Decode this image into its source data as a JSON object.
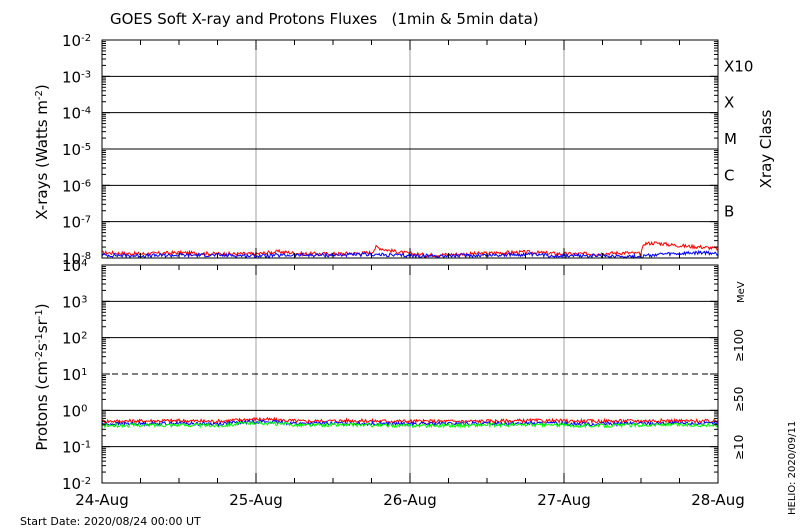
{
  "title": "GOES Soft X-ray and Protons Fluxes   (1min & 5min data)",
  "start_date": "Start Date: 2020/08/24 00:00 UT",
  "credit": "HELIO: 2020/09/11",
  "colors": {
    "red": "#ff0000",
    "blue": "#0000ff",
    "green": "#00ff00",
    "grid": "#a0a0a0",
    "axis": "#000000"
  },
  "chart_data": [
    {
      "type": "line",
      "panel": "x-rays",
      "ylabel": "X-rays (Watts m",
      "ylabel_exp": "-2",
      "ylabel_close": ")",
      "yscale": "log",
      "ylim": [
        1e-08,
        0.01
      ],
      "y_ticks": [
        {
          "base": "10",
          "exp": "-8",
          "value": 1e-08
        },
        {
          "base": "10",
          "exp": "-7",
          "value": 1e-07
        },
        {
          "base": "10",
          "exp": "-6",
          "value": 1e-06
        },
        {
          "base": "10",
          "exp": "-5",
          "value": 1e-05
        },
        {
          "base": "10",
          "exp": "-4",
          "value": 0.0001
        },
        {
          "base": "10",
          "exp": "-3",
          "value": 0.001
        },
        {
          "base": "10",
          "exp": "-2",
          "value": 0.01
        }
      ],
      "right_title": "Xray Class",
      "classes": [
        {
          "label": "B",
          "value": 1e-07
        },
        {
          "label": "C",
          "value": 1e-06
        },
        {
          "label": "M",
          "value": 1e-05
        },
        {
          "label": "X",
          "value": 0.0001
        },
        {
          "label": "X10",
          "value": 0.001
        }
      ],
      "grid_lines": [
        1e-07,
        1e-06,
        1e-05,
        0.0001,
        0.001
      ],
      "x_days": [
        0,
        4
      ],
      "series": [
        {
          "color": "red",
          "points": [
            [
              0,
              1.4e-08
            ],
            [
              0.25,
              1.3e-08
            ],
            [
              0.5,
              1.4e-08
            ],
            [
              0.75,
              1.3e-08
            ],
            [
              1.0,
              1.3e-08
            ],
            [
              1.15,
              1.5e-08
            ],
            [
              1.3,
              1.3e-08
            ],
            [
              1.5,
              1.3e-08
            ],
            [
              1.65,
              1.35e-08
            ],
            [
              1.75,
              1.4e-08
            ],
            [
              1.78,
              2e-08
            ],
            [
              1.84,
              1.7e-08
            ],
            [
              1.95,
              1.4e-08
            ],
            [
              2.1,
              1.2e-08
            ],
            [
              2.4,
              1.3e-08
            ],
            [
              2.6,
              1.4e-08
            ],
            [
              2.75,
              1.45e-08
            ],
            [
              3.0,
              1.3e-08
            ],
            [
              3.2,
              1.3e-08
            ],
            [
              3.4,
              1.4e-08
            ],
            [
              3.5,
              1.3e-08
            ],
            [
              3.52,
              2.5e-08
            ],
            [
              3.6,
              2.6e-08
            ],
            [
              3.7,
              2.3e-08
            ],
            [
              3.8,
              2.1e-08
            ],
            [
              3.9,
              2e-08
            ],
            [
              4.0,
              1.8e-08
            ]
          ]
        },
        {
          "color": "blue",
          "points": [
            [
              0,
              1.2e-08
            ],
            [
              0.25,
              1.15e-08
            ],
            [
              0.5,
              1.2e-08
            ],
            [
              0.75,
              1.2e-08
            ],
            [
              1.0,
              1.15e-08
            ],
            [
              1.25,
              1.2e-08
            ],
            [
              1.5,
              1.2e-08
            ],
            [
              1.75,
              1.25e-08
            ],
            [
              2.0,
              1.15e-08
            ],
            [
              2.25,
              1.15e-08
            ],
            [
              2.5,
              1.2e-08
            ],
            [
              2.75,
              1.25e-08
            ],
            [
              3.0,
              1.15e-08
            ],
            [
              3.25,
              1.15e-08
            ],
            [
              3.5,
              1.1e-08
            ],
            [
              3.6,
              1.25e-08
            ],
            [
              3.75,
              1.3e-08
            ],
            [
              3.9,
              1.4e-08
            ],
            [
              4.0,
              1.3e-08
            ]
          ]
        }
      ]
    },
    {
      "type": "line",
      "panel": "protons",
      "ylabel": "Protons (cm",
      "ylabel_exp": "-2",
      "ylabel_mid": "s",
      "ylabel_exp2": "-1",
      "ylabel_mid2": "sr",
      "ylabel_exp3": "-1",
      "ylabel_close": ")",
      "yscale": "log",
      "ylim": [
        0.01,
        10000
      ],
      "y_ticks": [
        {
          "base": "10",
          "exp": "-2",
          "value": 0.01
        },
        {
          "base": "10",
          "exp": "-1",
          "value": 0.1
        },
        {
          "base": "10",
          "exp": "0",
          "value": 1
        },
        {
          "base": "10",
          "exp": "1",
          "value": 10
        },
        {
          "base": "10",
          "exp": "2",
          "value": 100
        },
        {
          "base": "10",
          "exp": "3",
          "value": 1000
        },
        {
          "base": "10",
          "exp": "4",
          "value": 10000
        }
      ],
      "grid_lines": [
        0.1,
        1,
        100,
        1000
      ],
      "threshold": 10,
      "unit": "MeV",
      "energy_labels": [
        {
          "label": "≥100",
          "color": "green"
        },
        {
          "label": "≥50",
          "color": "blue"
        },
        {
          "label": "≥10",
          "color": "red"
        }
      ],
      "x_days": [
        0,
        4
      ],
      "series": [
        {
          "color": "red",
          "points": [
            [
              0,
              0.5
            ],
            [
              0.5,
              0.52
            ],
            [
              0.75,
              0.5
            ],
            [
              1.0,
              0.58
            ],
            [
              1.3,
              0.5
            ],
            [
              1.6,
              0.52
            ],
            [
              2.0,
              0.5
            ],
            [
              2.4,
              0.5
            ],
            [
              2.8,
              0.52
            ],
            [
              3.2,
              0.5
            ],
            [
              3.6,
              0.52
            ],
            [
              4.0,
              0.5
            ]
          ]
        },
        {
          "color": "blue",
          "points": [
            [
              0,
              0.42
            ],
            [
              0.5,
              0.44
            ],
            [
              0.75,
              0.42
            ],
            [
              1.0,
              0.5
            ],
            [
              1.3,
              0.43
            ],
            [
              1.6,
              0.44
            ],
            [
              2.0,
              0.42
            ],
            [
              2.4,
              0.43
            ],
            [
              2.8,
              0.44
            ],
            [
              3.2,
              0.42
            ],
            [
              3.6,
              0.44
            ],
            [
              4.0,
              0.43
            ]
          ]
        },
        {
          "color": "green",
          "points": [
            [
              0,
              0.38
            ],
            [
              0.5,
              0.4
            ],
            [
              0.75,
              0.38
            ],
            [
              1.0,
              0.46
            ],
            [
              1.3,
              0.39
            ],
            [
              1.6,
              0.4
            ],
            [
              2.0,
              0.38
            ],
            [
              2.4,
              0.39
            ],
            [
              2.8,
              0.4
            ],
            [
              3.2,
              0.38
            ],
            [
              3.6,
              0.4
            ],
            [
              4.0,
              0.39
            ]
          ]
        }
      ]
    }
  ],
  "x_ticks": [
    "24-Aug",
    "25-Aug",
    "26-Aug",
    "27-Aug",
    "28-Aug"
  ]
}
